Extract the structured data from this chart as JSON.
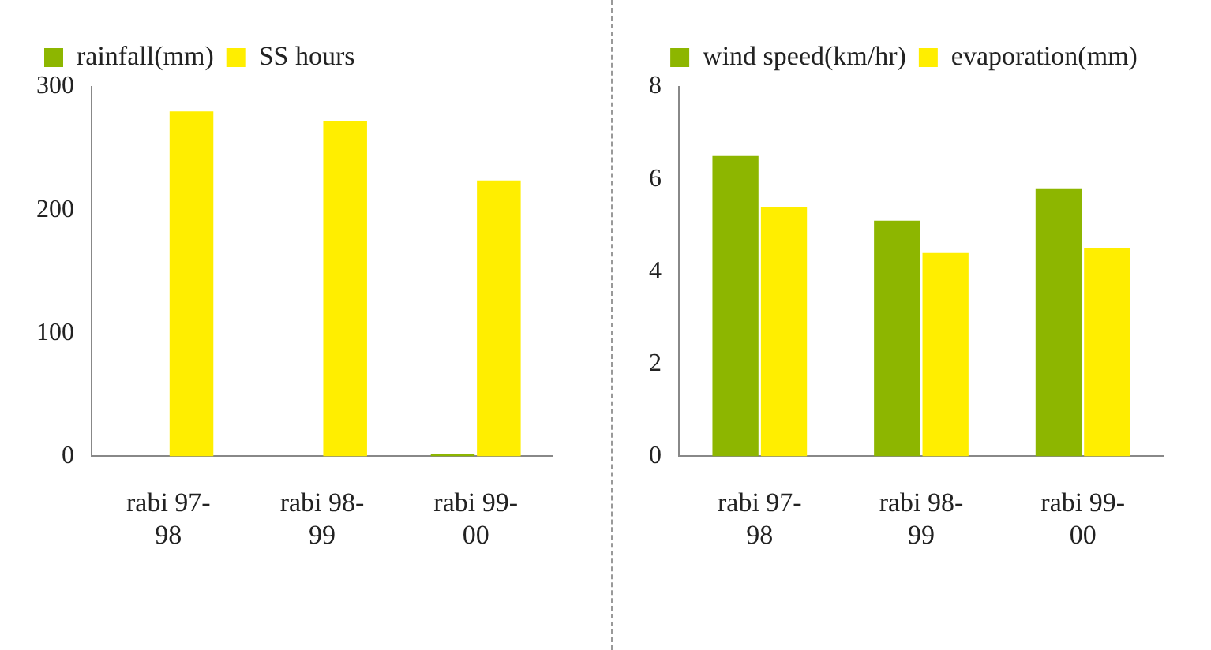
{
  "chart_data": [
    {
      "type": "bar",
      "categories": [
        "rabi 97-98",
        "rabi 98-99",
        "rabi 99-00"
      ],
      "series": [
        {
          "name": "rainfall(mm)",
          "color": "#8db600",
          "values": [
            0,
            0,
            2
          ]
        },
        {
          "name": "SS hours",
          "color": "#ffee00",
          "values": [
            280,
            272,
            224
          ]
        }
      ],
      "ylim": [
        0,
        300
      ],
      "yticks": [
        0,
        100,
        200,
        300
      ],
      "grid": false,
      "legend": "top left"
    },
    {
      "type": "bar",
      "categories": [
        "rabi 97-98",
        "rabi 98-99",
        "rabi 99-00"
      ],
      "series": [
        {
          "name": "wind speed(km/hr)",
          "color": "#8db600",
          "values": [
            6.5,
            5.1,
            5.8
          ]
        },
        {
          "name": "evaporation(mm)",
          "color": "#ffee00",
          "values": [
            5.4,
            4.4,
            4.5
          ]
        }
      ],
      "ylim": [
        0,
        8
      ],
      "yticks": [
        0,
        2,
        4,
        6,
        8
      ],
      "grid": false,
      "legend": "top"
    }
  ]
}
